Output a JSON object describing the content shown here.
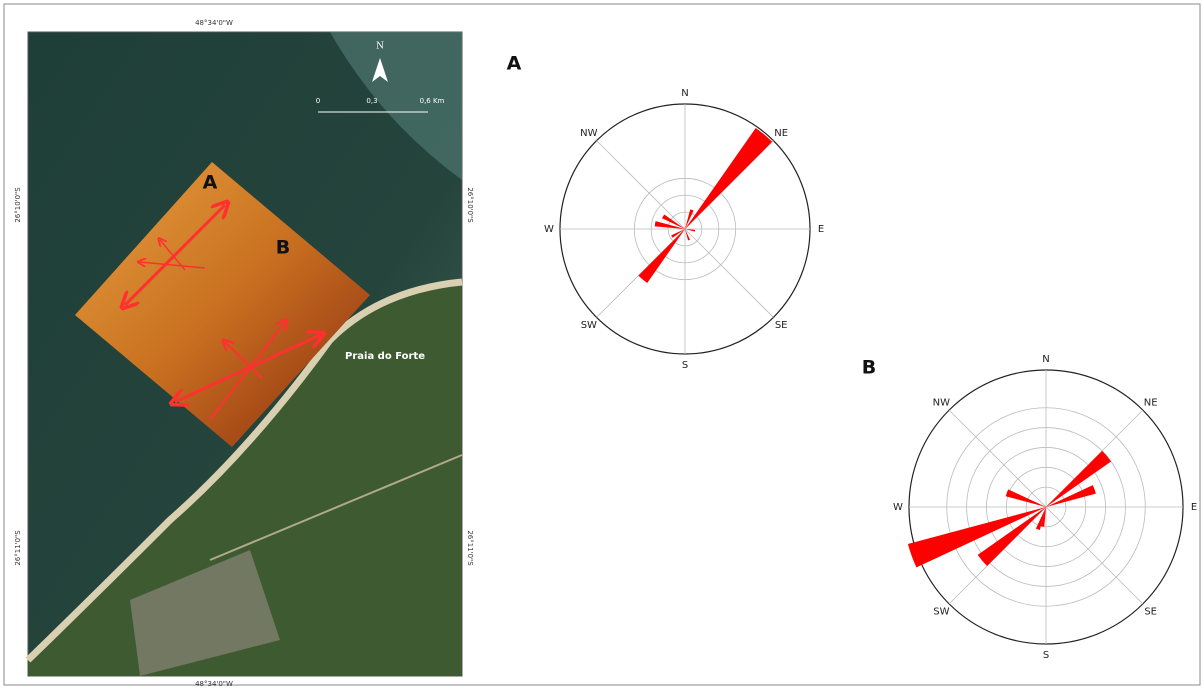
{
  "map": {
    "top_label": "48°34'0\"W",
    "bottom_label": "48°34'0\"W",
    "left_labels": [
      "26°10'0\"S",
      "26°11'0\"S"
    ],
    "right_labels": [
      "26°10'0\"S",
      "26°11'0\"S"
    ],
    "north": "N",
    "scale_labels": [
      "0",
      "0,3",
      "0,6 Km"
    ],
    "site_labels": [
      "A",
      "B"
    ],
    "place": "Praia do Forte"
  },
  "chart_data": [
    {
      "type": "rose",
      "title": "A",
      "color": "#ff0000",
      "bin_width": 10,
      "directions": [
        40,
        20,
        220,
        240,
        280,
        300,
        160,
        100
      ],
      "values": [
        7.3,
        1.2,
        3.9,
        0.9,
        1.8,
        1.5,
        0.7,
        0.6
      ],
      "rlim": [
        0,
        7.4
      ],
      "rticks": [
        1,
        2,
        3
      ],
      "direction_labels": [
        "N",
        "NE",
        "E",
        "SE",
        "S",
        "SW",
        "W",
        "NW"
      ]
    },
    {
      "type": "rose",
      "title": "B",
      "color": "#ff0000",
      "bin_width": 10,
      "directions": [
        250,
        230,
        50,
        70,
        290,
        200,
        190
      ],
      "values": [
        7.2,
        4.2,
        4.0,
        2.6,
        2.1,
        1.2,
        1.0
      ],
      "rlim": [
        0,
        6.9
      ],
      "rticks": [
        1,
        2,
        3,
        4,
        5
      ],
      "direction_labels": [
        "N",
        "NE",
        "E",
        "SE",
        "S",
        "SW",
        "W",
        "NW"
      ]
    }
  ]
}
